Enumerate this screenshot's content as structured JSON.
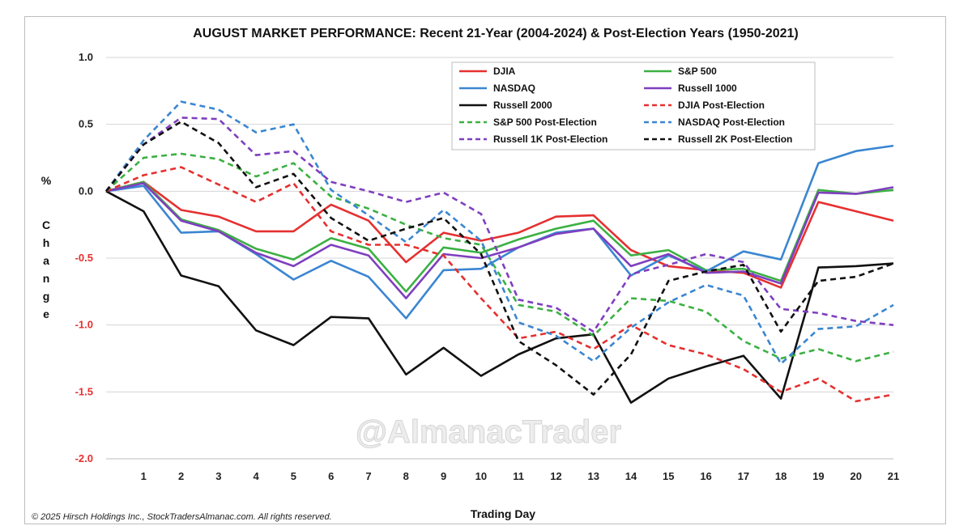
{
  "chart_data": {
    "type": "line",
    "title": "AUGUST MARKET PERFORMANCE: Recent 21-Year (2004-2024) & Post-Election Years (1950-2021)",
    "xlabel": "Trading Day",
    "ylabel_top": "%",
    "ylabel_letters": [
      "C",
      "h",
      "a",
      "n",
      "g",
      "e"
    ],
    "x": [
      0,
      1,
      2,
      3,
      4,
      5,
      6,
      7,
      8,
      9,
      10,
      11,
      12,
      13,
      14,
      15,
      16,
      17,
      18,
      19,
      20,
      21
    ],
    "x_tick_labels": [
      "1",
      "2",
      "3",
      "4",
      "5",
      "6",
      "7",
      "8",
      "9",
      "10",
      "11",
      "12",
      "13",
      "14",
      "15",
      "16",
      "17",
      "18",
      "19",
      "20",
      "21"
    ],
    "ylim": [
      -2.0,
      1.0
    ],
    "y_ticks": [
      1.0,
      0.5,
      0.0,
      -0.5,
      -1.0,
      -1.5,
      -2.0
    ],
    "y_tick_labels": [
      "1.0",
      "0.5",
      "0.0",
      "-0.5",
      "-1.0",
      "-1.5",
      "-2.0"
    ],
    "y_tick_colors": [
      "#222222",
      "#222222",
      "#222222",
      "#e53030",
      "#e53030",
      "#e53030",
      "#e53030"
    ],
    "grid": "horizontal",
    "legend_position": "top-right",
    "series": [
      {
        "name": "DJIA",
        "color": "#e53030",
        "dashed": false,
        "values": [
          0,
          0.07,
          -0.14,
          -0.19,
          -0.3,
          -0.3,
          -0.1,
          -0.22,
          -0.53,
          -0.31,
          -0.37,
          -0.31,
          -0.19,
          -0.18,
          -0.44,
          -0.56,
          -0.59,
          -0.61,
          -0.72,
          -0.08,
          -0.15,
          -0.22
        ]
      },
      {
        "name": "S&P 500",
        "color": "#3cb043",
        "dashed": false,
        "values": [
          0,
          0.07,
          -0.21,
          -0.29,
          -0.43,
          -0.51,
          -0.35,
          -0.43,
          -0.75,
          -0.42,
          -0.46,
          -0.36,
          -0.28,
          -0.22,
          -0.48,
          -0.44,
          -0.59,
          -0.58,
          -0.67,
          0.01,
          -0.02,
          0.01
        ]
      },
      {
        "name": "NASDAQ",
        "color": "#3b86d1",
        "dashed": false,
        "values": [
          0,
          0.04,
          -0.31,
          -0.3,
          -0.47,
          -0.66,
          -0.52,
          -0.64,
          -0.95,
          -0.59,
          -0.58,
          -0.42,
          -0.31,
          -0.28,
          -0.63,
          -0.48,
          -0.6,
          -0.45,
          -0.51,
          0.21,
          0.3,
          0.34
        ]
      },
      {
        "name": "Russell 1000",
        "color": "#7f3fbf",
        "dashed": false,
        "values": [
          0,
          0.06,
          -0.22,
          -0.3,
          -0.46,
          -0.56,
          -0.4,
          -0.48,
          -0.8,
          -0.47,
          -0.5,
          -0.42,
          -0.32,
          -0.28,
          -0.56,
          -0.47,
          -0.61,
          -0.6,
          -0.69,
          -0.01,
          -0.02,
          0.03
        ]
      },
      {
        "name": "Russell 2000",
        "color": "#111111",
        "dashed": false,
        "values": [
          0,
          -0.15,
          -0.63,
          -0.71,
          -1.04,
          -1.15,
          -0.94,
          -0.95,
          -1.37,
          -1.17,
          -1.38,
          -1.22,
          -1.1,
          -1.07,
          -1.58,
          -1.4,
          -1.31,
          -1.23,
          -1.55,
          -0.57,
          -0.56,
          -0.54
        ]
      },
      {
        "name": "DJIA Post-Election",
        "color": "#e53030",
        "dashed": true,
        "values": [
          0,
          0.12,
          0.18,
          0.05,
          -0.08,
          0.06,
          -0.3,
          -0.4,
          -0.4,
          -0.48,
          -0.8,
          -1.1,
          -1.05,
          -1.18,
          -1.0,
          -1.15,
          -1.22,
          -1.33,
          -1.5,
          -1.4,
          -1.57,
          -1.52
        ]
      },
      {
        "name": "S&P 500 Post-Election",
        "color": "#3cb043",
        "dashed": true,
        "values": [
          0,
          0.25,
          0.28,
          0.24,
          0.11,
          0.21,
          -0.04,
          -0.13,
          -0.25,
          -0.35,
          -0.4,
          -0.85,
          -0.9,
          -1.08,
          -0.8,
          -0.82,
          -0.9,
          -1.12,
          -1.25,
          -1.18,
          -1.27,
          -1.2
        ]
      },
      {
        "name": "NASDAQ Post-Election",
        "color": "#3b86d1",
        "dashed": true,
        "values": [
          0,
          0.38,
          0.67,
          0.61,
          0.44,
          0.5,
          0.01,
          -0.18,
          -0.38,
          -0.14,
          -0.37,
          -0.98,
          -1.08,
          -1.27,
          -1.02,
          -0.83,
          -0.7,
          -0.78,
          -1.29,
          -1.03,
          -1.01,
          -0.85
        ]
      },
      {
        "name": "Russell 1K Post-Election",
        "color": "#7f3fbf",
        "dashed": true,
        "values": [
          0,
          0.35,
          0.55,
          0.54,
          0.27,
          0.3,
          0.07,
          0.0,
          -0.08,
          -0.01,
          -0.17,
          -0.81,
          -0.87,
          -1.05,
          -0.62,
          -0.55,
          -0.47,
          -0.53,
          -0.88,
          -0.91,
          -0.97,
          -1.0
        ]
      },
      {
        "name": "Russell 2K Post-Election",
        "color": "#111111",
        "dashed": true,
        "values": [
          0,
          0.35,
          0.52,
          0.36,
          0.03,
          0.13,
          -0.2,
          -0.37,
          -0.28,
          -0.2,
          -0.47,
          -1.12,
          -1.3,
          -1.52,
          -1.22,
          -0.67,
          -0.6,
          -0.55,
          -1.05,
          -0.67,
          -0.64,
          -0.54
        ]
      }
    ],
    "watermark": "@AlmanacTrader",
    "copyright": "© 2025 Hirsch Holdings Inc., StockTradersAlmanac.com. All rights reserved."
  }
}
